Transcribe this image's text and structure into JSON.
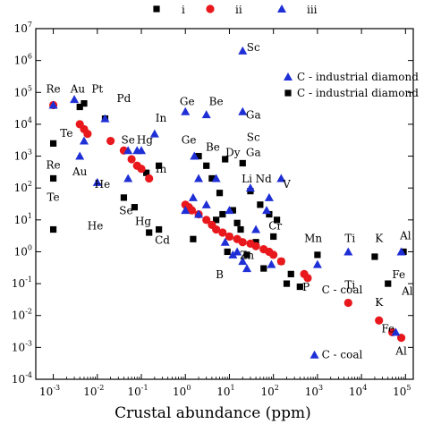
{
  "chart_data": {
    "type": "scatter",
    "xlabel": "Crustal abundance (ppm)",
    "xscale": "log",
    "yscale": "log",
    "xlim": [
      0.0004,
      150000
    ],
    "ylim": [
      0.0001,
      10000000
    ],
    "x_ticks": [
      {
        "base": "10",
        "exp": "-3",
        "value": 0.001
      },
      {
        "base": "10",
        "exp": "-2",
        "value": 0.01
      },
      {
        "base": "10",
        "exp": "-1",
        "value": 0.1
      },
      {
        "base": "10",
        "exp": "0",
        "value": 1
      },
      {
        "base": "10",
        "exp": "1",
        "value": 10
      },
      {
        "base": "10",
        "exp": "2",
        "value": 100
      },
      {
        "base": "10",
        "exp": "3",
        "value": 1000
      },
      {
        "base": "10",
        "exp": "4",
        "value": 10000
      },
      {
        "base": "10",
        "exp": "5",
        "value": 100000
      }
    ],
    "y_ticks": [
      {
        "base": "10",
        "exp": "-4",
        "value": 0.0001
      },
      {
        "base": "10",
        "exp": "-3",
        "value": 0.001
      },
      {
        "base": "10",
        "exp": "-2",
        "value": 0.01
      },
      {
        "base": "10",
        "exp": "-1",
        "value": 0.1
      },
      {
        "base": "10",
        "exp": "0",
        "value": 1
      },
      {
        "base": "10",
        "exp": "1",
        "value": 10
      },
      {
        "base": "10",
        "exp": "2",
        "value": 100
      },
      {
        "base": "10",
        "exp": "3",
        "value": 1000
      },
      {
        "base": "10",
        "exp": "4",
        "value": 10000
      },
      {
        "base": "10",
        "exp": "5",
        "value": 100000
      },
      {
        "base": "10",
        "exp": "6",
        "value": 1000000
      },
      {
        "base": "10",
        "exp": "7",
        "value": 10000000
      }
    ],
    "legend_top": [
      {
        "label": "i",
        "marker": "square",
        "color": "#000000"
      },
      {
        "label": "ii",
        "marker": "circle",
        "color": "#e8181c"
      },
      {
        "label": "iii",
        "marker": "triangle",
        "color": "#1f2fd6"
      }
    ],
    "legend_right": [
      {
        "label": "C - industrial diamond",
        "marker": "triangle",
        "color": "#1f2fd6"
      },
      {
        "label": "C - industrial diamond",
        "marker": "square",
        "color": "#000000"
      }
    ],
    "annotations": [
      {
        "text": "C - coal",
        "marker": "none",
        "x": 1500,
        "y": 0.05
      },
      {
        "text": "C - coal",
        "marker": "triangle",
        "x": 1500,
        "y": 0.00045
      }
    ],
    "series": [
      {
        "name": "i",
        "marker": "square",
        "color": "#000000",
        "points": [
          [
            0.001,
            2500
          ],
          [
            0.001,
            200
          ],
          [
            0.005,
            45000
          ],
          [
            0.004,
            35000
          ],
          [
            0.015,
            15000
          ],
          [
            0.04,
            50
          ],
          [
            0.07,
            25
          ],
          [
            0.13,
            300
          ],
          [
            0.15,
            4
          ],
          [
            0.25,
            500
          ],
          [
            0.25,
            5
          ],
          [
            0.001,
            5
          ],
          [
            1.5,
            2.5
          ],
          [
            2,
            1000
          ],
          [
            3,
            500
          ],
          [
            4,
            200
          ],
          [
            5,
            10
          ],
          [
            6,
            70
          ],
          [
            7,
            15
          ],
          [
            8,
            800
          ],
          [
            9,
            1
          ],
          [
            10,
            3
          ],
          [
            12,
            20
          ],
          [
            15,
            8
          ],
          [
            18,
            5
          ],
          [
            20,
            600
          ],
          [
            25,
            0.8
          ],
          [
            30,
            80
          ],
          [
            40,
            2
          ],
          [
            50,
            30
          ],
          [
            60,
            0.3
          ],
          [
            80,
            15
          ],
          [
            100,
            3
          ],
          [
            120,
            10
          ],
          [
            150,
            0.5
          ],
          [
            200,
            0.1
          ],
          [
            250,
            0.2
          ],
          [
            400,
            0.08
          ],
          [
            1000,
            0.8
          ],
          [
            20000,
            0.7
          ],
          [
            40000,
            0.1
          ],
          [
            90000,
            1
          ]
        ]
      },
      {
        "name": "ii",
        "marker": "circle",
        "color": "#e8181c",
        "points": [
          [
            0.001,
            40000
          ],
          [
            0.004,
            10000
          ],
          [
            0.005,
            7000
          ],
          [
            0.006,
            5000
          ],
          [
            0.02,
            3000
          ],
          [
            0.04,
            1500
          ],
          [
            0.06,
            800
          ],
          [
            0.08,
            500
          ],
          [
            0.1,
            400
          ],
          [
            0.15,
            200
          ],
          [
            1,
            30
          ],
          [
            1.2,
            25
          ],
          [
            1.4,
            20
          ],
          [
            2,
            15
          ],
          [
            3,
            10
          ],
          [
            4,
            7
          ],
          [
            5,
            5
          ],
          [
            7,
            4
          ],
          [
            10,
            3
          ],
          [
            15,
            2.5
          ],
          [
            20,
            2
          ],
          [
            30,
            1.8
          ],
          [
            40,
            1.5
          ],
          [
            60,
            1.2
          ],
          [
            80,
            1
          ],
          [
            100,
            0.8
          ],
          [
            150,
            0.5
          ],
          [
            500,
            0.2
          ],
          [
            600,
            0.15
          ],
          [
            5000,
            0.025
          ],
          [
            25000,
            0.007
          ],
          [
            50000,
            0.003
          ],
          [
            80000,
            0.002
          ]
        ]
      },
      {
        "name": "iii",
        "marker": "triangle",
        "color": "#1f2fd6",
        "points": [
          [
            0.001,
            40000
          ],
          [
            0.003,
            60000
          ],
          [
            0.005,
            3000
          ],
          [
            0.004,
            1000
          ],
          [
            0.01,
            150
          ],
          [
            0.015,
            15000
          ],
          [
            0.05,
            200
          ],
          [
            0.05,
            1500
          ],
          [
            0.08,
            1500
          ],
          [
            0.1,
            1500
          ],
          [
            0.2,
            5000
          ],
          [
            1,
            25000
          ],
          [
            2,
            200
          ],
          [
            3,
            20000
          ],
          [
            20,
            2000000
          ],
          [
            20,
            25000
          ],
          [
            1,
            20
          ],
          [
            1.5,
            50
          ],
          [
            1.6,
            1000
          ],
          [
            2,
            15
          ],
          [
            3,
            30
          ],
          [
            5,
            200
          ],
          [
            8,
            2
          ],
          [
            10,
            20
          ],
          [
            12,
            0.8
          ],
          [
            15,
            1
          ],
          [
            20,
            0.5
          ],
          [
            25,
            0.3
          ],
          [
            30,
            100
          ],
          [
            40,
            5
          ],
          [
            70,
            20
          ],
          [
            80,
            50
          ],
          [
            90,
            0.4
          ],
          [
            150,
            200
          ],
          [
            1000,
            0.4
          ],
          [
            5000,
            1
          ],
          [
            60000,
            0.003
          ],
          [
            80000,
            1
          ]
        ]
      }
    ],
    "point_labels": [
      {
        "text": "Re",
        "x": 0.001,
        "y": 100000
      },
      {
        "text": "Au",
        "x": 0.0036,
        "y": 100000
      },
      {
        "text": "Pt",
        "x": 0.01,
        "y": 100000
      },
      {
        "text": "Pd",
        "x": 0.04,
        "y": 50000
      },
      {
        "text": "Te",
        "x": 0.002,
        "y": 4000
      },
      {
        "text": "Au",
        "x": 0.004,
        "y": 250
      },
      {
        "text": "He",
        "x": 0.013,
        "y": 100
      },
      {
        "text": "Re",
        "x": 0.001,
        "y": 400
      },
      {
        "text": "Te",
        "x": 0.001,
        "y": 40
      },
      {
        "text": "He",
        "x": 0.009,
        "y": 5
      },
      {
        "text": "Se",
        "x": 0.05,
        "y": 2500
      },
      {
        "text": "Hg",
        "x": 0.12,
        "y": 2500
      },
      {
        "text": "In",
        "x": 0.28,
        "y": 12000
      },
      {
        "text": "In",
        "x": 0.28,
        "y": 300
      },
      {
        "text": "Se",
        "x": 0.045,
        "y": 15
      },
      {
        "text": "Hg",
        "x": 0.11,
        "y": 7
      },
      {
        "text": "Cd",
        "x": 0.3,
        "y": 1.8
      },
      {
        "text": "Ge",
        "x": 1.1,
        "y": 40000
      },
      {
        "text": "Be",
        "x": 5,
        "y": 40000
      },
      {
        "text": "Ge",
        "x": 1.2,
        "y": 2500
      },
      {
        "text": "Be",
        "x": 4.2,
        "y": 1500
      },
      {
        "text": "Dy",
        "x": 12,
        "y": 1000
      },
      {
        "text": "Ga",
        "x": 35,
        "y": 1000
      },
      {
        "text": "Sc",
        "x": 35,
        "y": 2000000
      },
      {
        "text": "Ga",
        "x": 35,
        "y": 15000
      },
      {
        "text": "Sc",
        "x": 35,
        "y": 3000
      },
      {
        "text": "Li",
        "x": 25,
        "y": 150
      },
      {
        "text": "Nd",
        "x": 60,
        "y": 150
      },
      {
        "text": "V",
        "x": 200,
        "y": 100
      },
      {
        "text": "Cr",
        "x": 110,
        "y": 5
      },
      {
        "text": "Zn",
        "x": 25,
        "y": 0.6
      },
      {
        "text": "B",
        "x": 6,
        "y": 0.15
      },
      {
        "text": "Mn",
        "x": 800,
        "y": 2
      },
      {
        "text": "P",
        "x": 550,
        "y": 0.06
      },
      {
        "text": "Ti",
        "x": 5500,
        "y": 2
      },
      {
        "text": "Ti",
        "x": 5500,
        "y": 0.07
      },
      {
        "text": "K",
        "x": 25000,
        "y": 2
      },
      {
        "text": "K",
        "x": 25000,
        "y": 0.02
      },
      {
        "text": "Al",
        "x": 100000,
        "y": 2.5
      },
      {
        "text": "Fe",
        "x": 70000,
        "y": 0.15
      },
      {
        "text": "Al",
        "x": 110000,
        "y": 0.045
      },
      {
        "text": "Fe",
        "x": 40000,
        "y": 0.003
      },
      {
        "text": "Al",
        "x": 80000,
        "y": 0.0006
      }
    ]
  }
}
